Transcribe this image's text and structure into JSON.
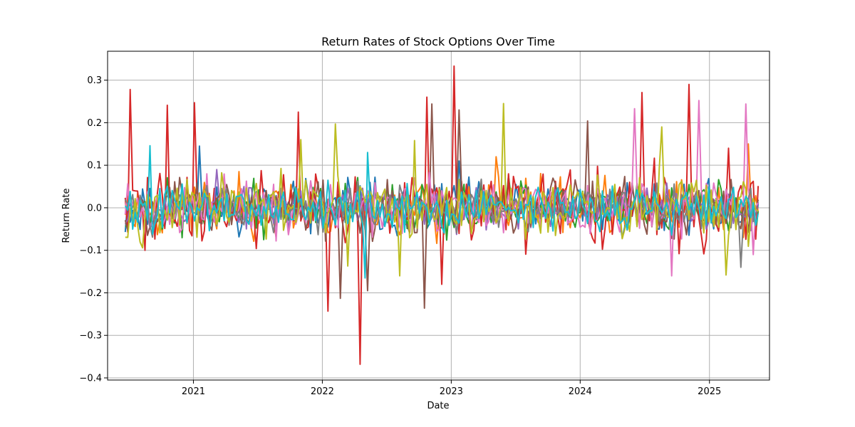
{
  "chart_data": {
    "type": "line",
    "title": "Return Rates of Stock Options Over Time",
    "xlabel": "Date",
    "ylabel": "Return Rate",
    "x_range": [
      "2020-06-22",
      "2025-05-19"
    ],
    "xlim": [
      "2020-05-03",
      "2025-06-20"
    ],
    "ylim": [
      -0.405,
      0.368
    ],
    "x_ticks": [
      "2021",
      "2022",
      "2023",
      "2024",
      "2025"
    ],
    "x_tick_dates": [
      "2021-01-01",
      "2022-01-01",
      "2023-01-01",
      "2024-01-01",
      "2025-01-01"
    ],
    "y_ticks": [
      -0.4,
      -0.3,
      -0.2,
      -0.1,
      0.0,
      0.1,
      0.2,
      0.3
    ],
    "y_tick_labels": [
      "−0.4",
      "−0.3",
      "−0.2",
      "−0.1",
      "0.0",
      "0.1",
      "0.2",
      "0.3"
    ],
    "grid": true,
    "legend": "none",
    "series": [
      {
        "color": "#1f77b4",
        "amplitude": 0.045,
        "seed": 11,
        "spikes": [
          [
            "2021-01-16",
            0.145
          ],
          [
            "2023-01-22",
            0.11
          ]
        ]
      },
      {
        "color": "#ff7f0e",
        "amplitude": 0.045,
        "seed": 23,
        "spikes": [
          [
            "2023-05-10",
            0.12
          ],
          [
            "2025-04-20",
            0.15
          ]
        ]
      },
      {
        "color": "#2ca02c",
        "amplitude": 0.04,
        "seed": 37,
        "spikes": [
          [
            "2021-07-20",
            -0.075
          ]
        ]
      },
      {
        "color": "#d62728",
        "amplitude": 0.06,
        "seed": 41,
        "spikes": [
          [
            "2020-07-08",
            0.278
          ],
          [
            "2020-08-20",
            -0.1
          ],
          [
            "2020-10-18",
            0.241
          ],
          [
            "2021-01-06",
            0.247
          ],
          [
            "2021-10-25",
            0.225
          ],
          [
            "2022-01-20",
            -0.243
          ],
          [
            "2022-04-17",
            -0.368
          ],
          [
            "2022-10-26",
            0.26
          ],
          [
            "2022-12-05",
            -0.18
          ],
          [
            "2023-01-11",
            0.333
          ],
          [
            "2024-06-25",
            0.271
          ],
          [
            "2024-11-05",
            0.29
          ],
          [
            "2025-02-25",
            0.14
          ]
        ]
      },
      {
        "color": "#9467bd",
        "amplitude": 0.035,
        "seed": 53,
        "spikes": [
          [
            "2021-03-10",
            0.09
          ]
        ]
      },
      {
        "color": "#8c564b",
        "amplitude": 0.045,
        "seed": 67,
        "spikes": [
          [
            "2022-02-20",
            -0.213
          ],
          [
            "2022-05-06",
            -0.195
          ],
          [
            "2022-10-18",
            -0.236
          ],
          [
            "2022-11-05",
            0.244
          ],
          [
            "2023-01-20",
            0.23
          ],
          [
            "2024-01-20",
            0.204
          ]
        ]
      },
      {
        "color": "#e377c2",
        "amplitude": 0.045,
        "seed": 71,
        "spikes": [
          [
            "2024-06-05",
            0.233
          ],
          [
            "2024-09-15",
            -0.16
          ],
          [
            "2024-12-05",
            0.252
          ],
          [
            "2025-04-12",
            0.244
          ],
          [
            "2025-05-05",
            -0.11
          ]
        ]
      },
      {
        "color": "#7f7f7f",
        "amplitude": 0.035,
        "seed": 83,
        "spikes": [
          [
            "2025-04-01",
            -0.14
          ]
        ]
      },
      {
        "color": "#bcbd22",
        "amplitude": 0.05,
        "seed": 97,
        "spikes": [
          [
            "2021-11-01",
            0.16
          ],
          [
            "2022-02-05",
            0.197
          ],
          [
            "2022-03-15",
            -0.137
          ],
          [
            "2022-08-06",
            -0.16
          ],
          [
            "2022-09-20",
            0.158
          ],
          [
            "2023-05-30",
            0.245
          ],
          [
            "2024-08-18",
            0.19
          ],
          [
            "2025-02-20",
            -0.158
          ]
        ]
      },
      {
        "color": "#17becf",
        "amplitude": 0.04,
        "seed": 101,
        "spikes": [
          [
            "2020-09-01",
            0.146
          ],
          [
            "2022-05-10",
            0.13
          ],
          [
            "2022-05-01",
            -0.165
          ]
        ]
      }
    ]
  }
}
